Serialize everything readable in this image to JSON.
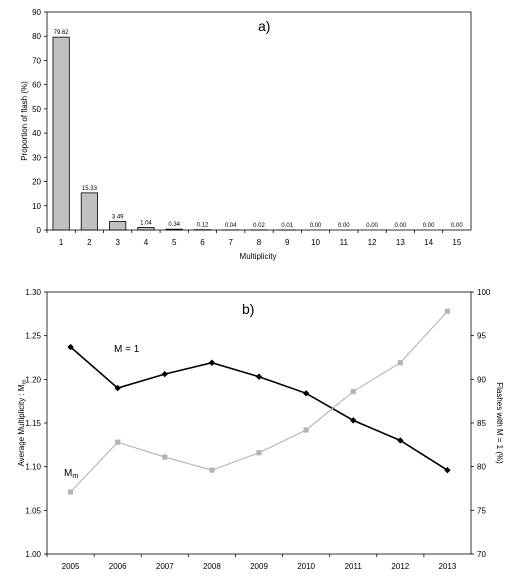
{
  "chart_data": [
    {
      "type": "bar",
      "title": "a)",
      "xlabel": "Multiplicity",
      "ylabel": "Proportion of flash (%)",
      "ylim": [
        0,
        90
      ],
      "yticks": [
        "0",
        "10",
        "20",
        "30",
        "40",
        "50",
        "60",
        "70",
        "80",
        "90"
      ],
      "categories": [
        "1",
        "2",
        "3",
        "4",
        "5",
        "6",
        "7",
        "8",
        "9",
        "10",
        "11",
        "12",
        "13",
        "14",
        "15"
      ],
      "values": [
        79.62,
        15.33,
        3.49,
        1.04,
        0.34,
        0.12,
        0.04,
        0.02,
        0.01,
        0.0,
        0.0,
        0.0,
        0.0,
        0.0,
        0.0
      ],
      "value_labels": [
        "79.62",
        "15.33",
        "3.49",
        "1.04",
        "0.34",
        "0.12",
        "0.04",
        "0.02",
        "0.01",
        "0.00",
        "0.00",
        "0.00",
        "0.00",
        "0.00",
        "0.00"
      ],
      "bar_color": "#c0c0c0",
      "grid": false,
      "legend": "none"
    },
    {
      "type": "line",
      "title": "b)",
      "x": [
        "2005",
        "2006",
        "2007",
        "2008",
        "2009",
        "2010",
        "2011",
        "2012",
        "2013"
      ],
      "ylabel": "Average Multiplicity : M",
      "ylabel_subscript": "m",
      "y2label": "Flashes with M = 1 (%)",
      "ylim": [
        1.0,
        1.3
      ],
      "y2lim": [
        70,
        100
      ],
      "yticks": [
        "1.00",
        "1.05",
        "1.10",
        "1.15",
        "1.20",
        "1.25",
        "1.30"
      ],
      "y2ticks": [
        "70",
        "75",
        "80",
        "85",
        "90",
        "95",
        "100"
      ],
      "series": [
        {
          "name": "M = 1",
          "axis": "right",
          "color": "#000000",
          "marker": "diamond",
          "values": [
            93.7,
            89.0,
            90.6,
            91.9,
            90.3,
            88.4,
            85.3,
            83.0,
            79.6
          ]
        },
        {
          "name": "M",
          "name_subscript": "m",
          "axis": "left",
          "color": "#b4b4b4",
          "marker": "square",
          "values": [
            1.071,
            1.128,
            1.111,
            1.096,
            1.116,
            1.142,
            1.186,
            1.219,
            1.278
          ]
        }
      ],
      "grid": false,
      "legend": "inline-labels"
    }
  ]
}
